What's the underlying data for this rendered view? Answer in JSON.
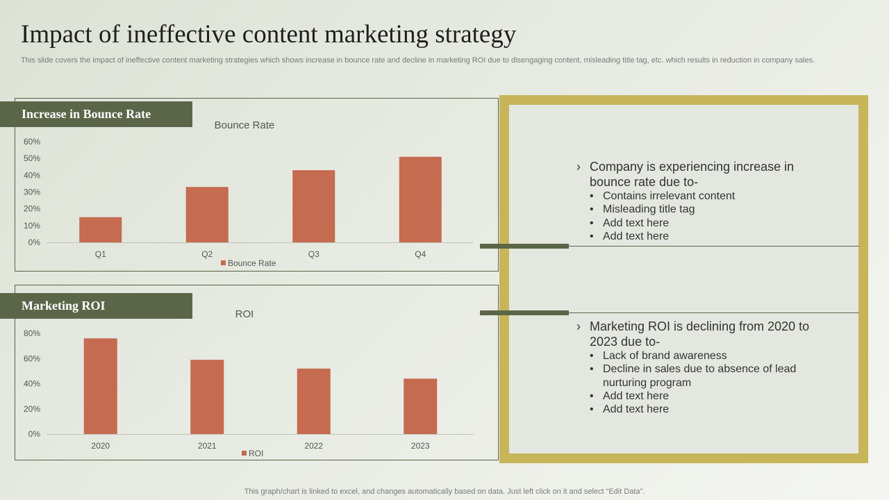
{
  "title": "Impact of ineffective content marketing strategy",
  "subtitle": "This slide covers the impact of ineffective content marketing strategies which shows increase in bounce rate and decline in marketing ROI due to disengaging content, misleading title tag, etc. which results in reduction in company sales.",
  "panels": [
    {
      "tag": "Increase in Bounce Rate"
    },
    {
      "tag": "Marketing ROI"
    }
  ],
  "chart_data": [
    {
      "type": "bar",
      "title": "Bounce Rate",
      "categories": [
        "Q1",
        "Q2",
        "Q3",
        "Q4"
      ],
      "series": [
        {
          "name": "Bounce Rate",
          "values": [
            15,
            33,
            43,
            51
          ]
        }
      ],
      "ylim": [
        0,
        60
      ],
      "yticks": [
        "0%",
        "10%",
        "20%",
        "30%",
        "40%",
        "50%",
        "60%"
      ],
      "legend": "bottom",
      "bar_color": "#c46b50"
    },
    {
      "type": "bar",
      "title": "ROI",
      "categories": [
        "2020",
        "2021",
        "2022",
        "2023"
      ],
      "series": [
        {
          "name": "ROI",
          "values": [
            76,
            59,
            52,
            44
          ]
        }
      ],
      "ylim": [
        0,
        80
      ],
      "yticks": [
        "0%",
        "20%",
        "40%",
        "60%",
        "80%"
      ],
      "legend": "bottom",
      "bar_color": "#c46b50"
    }
  ],
  "notes": [
    {
      "chevron": "›",
      "heading": "Company is experiencing increase in bounce rate due to-",
      "bullets": [
        "Contains irrelevant  content",
        "Misleading title tag",
        "Add text here",
        "Add text here"
      ]
    },
    {
      "chevron": "›",
      "heading": "Marketing ROI is declining from 2020 to 2023 due to-",
      "bullets": [
        "Lack of brand awareness",
        "Decline in sales due to absence of lead nurturing  program",
        "Add text here",
        "Add text here"
      ]
    }
  ],
  "bullet_glyph": "•",
  "footer": "This graph/chart is linked to excel,  and changes automatically based on data. Just left click on it and select “Edit Data”.",
  "colors": {
    "accent_dark": "#5b6648",
    "frame_gold": "#c8b55a",
    "bar": "#c46b50"
  }
}
